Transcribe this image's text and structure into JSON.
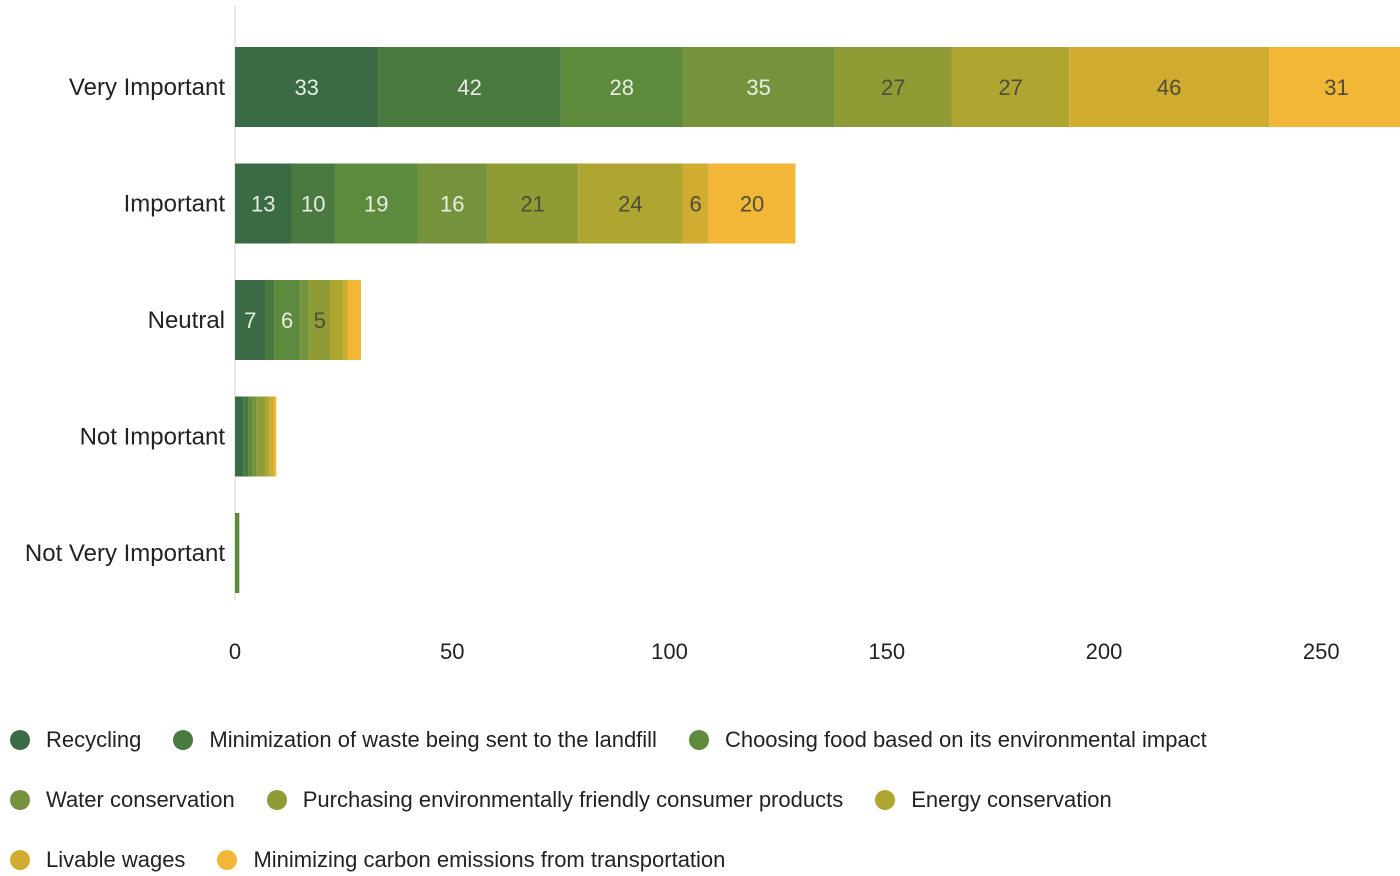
{
  "chart_data": {
    "type": "bar",
    "orientation": "horizontal",
    "stacked": true,
    "categories": [
      "Very Important",
      "Important",
      "Neutral",
      "Not Important",
      "Not Very Important"
    ],
    "series": [
      {
        "name": "Recycling",
        "color": "#3b6b45",
        "values": [
          33,
          13,
          7,
          2,
          0
        ]
      },
      {
        "name": "Minimization of waste being sent to the landfill",
        "color": "#4a7a40",
        "values": [
          42,
          10,
          2,
          1,
          0
        ]
      },
      {
        "name": "Choosing food based on its environmental impact",
        "color": "#5e8a3e",
        "values": [
          28,
          19,
          6,
          1,
          1
        ]
      },
      {
        "name": "Water conservation",
        "color": "#75933d",
        "values": [
          35,
          16,
          2,
          1,
          0
        ]
      },
      {
        "name": "Purchasing environmentally friendly consumer products",
        "color": "#909b36",
        "values": [
          27,
          21,
          5,
          2,
          0
        ]
      },
      {
        "name": "Energy conservation",
        "color": "#afa632",
        "values": [
          27,
          24,
          3,
          1,
          0
        ]
      },
      {
        "name": "Livable wages",
        "color": "#d0ac30",
        "values": [
          46,
          6,
          1,
          1,
          0
        ]
      },
      {
        "name": "Minimizing carbon emissions from transportation",
        "color": "#f2b737",
        "values": [
          31,
          20,
          3,
          0.5,
          0
        ]
      }
    ],
    "label_threshold": 5,
    "xlim": [
      0,
      265
    ],
    "xticks": [
      "0",
      "50",
      "100",
      "150",
      "200",
      "250"
    ],
    "xtick_values": [
      0,
      50,
      100,
      150,
      200,
      250
    ],
    "grid": false,
    "legend_position": "bottom",
    "title": "",
    "xlabel": "",
    "ylabel": ""
  }
}
